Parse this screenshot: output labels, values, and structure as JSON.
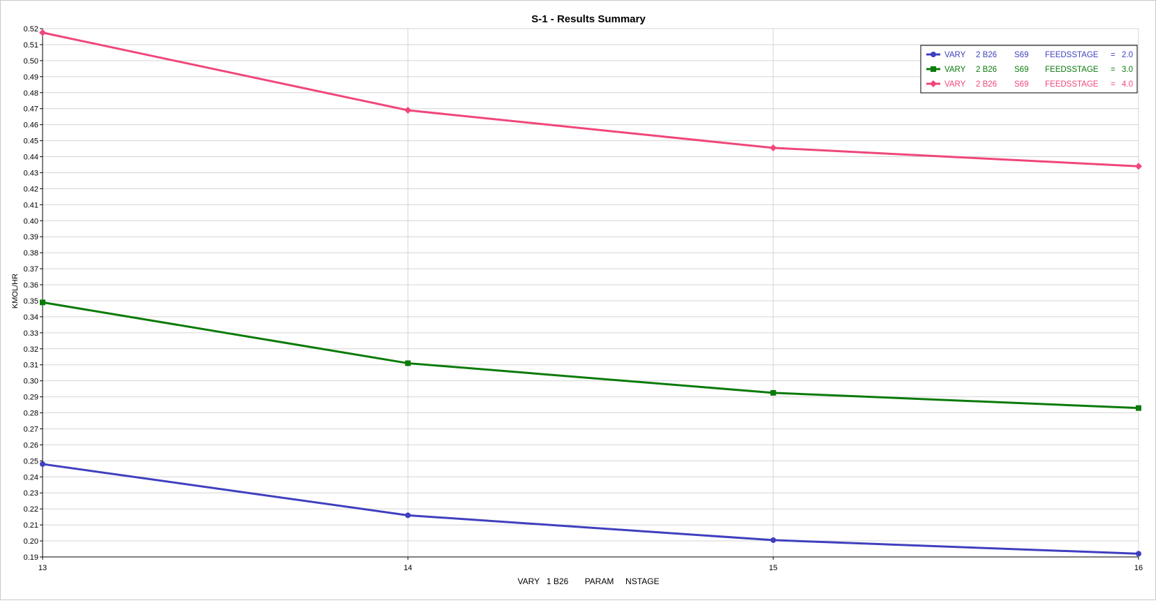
{
  "chart_data": {
    "type": "line",
    "title": "S-1 - Results Summary",
    "xlabel": "VARY   1 B26       PARAM     NSTAGE",
    "ylabel": "KMOL/HR",
    "xlim": [
      13,
      16
    ],
    "ylim": [
      0.19,
      0.52
    ],
    "x_ticks": [
      "13",
      "14",
      "15",
      "16"
    ],
    "y_ticks": [
      "0.19",
      "0.20",
      "0.21",
      "0.22",
      "0.23",
      "0.24",
      "0.25",
      "0.26",
      "0.27",
      "0.28",
      "0.29",
      "0.30",
      "0.31",
      "0.32",
      "0.33",
      "0.34",
      "0.35",
      "0.36",
      "0.37",
      "0.38",
      "0.39",
      "0.40",
      "0.41",
      "0.42",
      "0.43",
      "0.44",
      "0.45",
      "0.46",
      "0.47",
      "0.48",
      "0.49",
      "0.50",
      "0.51",
      "0.52"
    ],
    "grid": true,
    "legend_position": "top-right",
    "x": [
      13,
      14,
      15,
      16
    ],
    "series": [
      {
        "legend_parts": [
          "VARY",
          "2 B26",
          "S69",
          "FEEDSSTAGE",
          "=",
          "2.0"
        ],
        "color": "#3f3fbf",
        "marker": "circle",
        "values": [
          0.248,
          0.216,
          0.2005,
          0.192
        ]
      },
      {
        "legend_parts": [
          "VARY",
          "2 B26",
          "S69",
          "FEEDSSTAGE",
          "=",
          "3.0"
        ],
        "color": "#0a7a0a",
        "marker": "square",
        "values": [
          0.349,
          0.311,
          0.2925,
          0.283
        ]
      },
      {
        "legend_parts": [
          "VARY",
          "2 B26",
          "S69",
          "FEEDSSTAGE",
          "=",
          "4.0"
        ],
        "color": "#f0467a",
        "marker": "diamond",
        "values": [
          0.5175,
          0.469,
          0.4455,
          0.434
        ]
      }
    ]
  }
}
